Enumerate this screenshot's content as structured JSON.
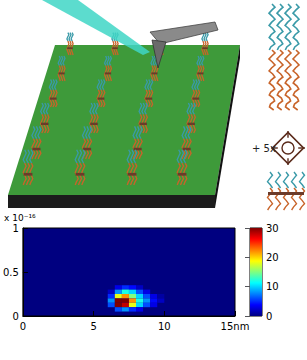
{
  "chart_data": {
    "type": "heatmap",
    "xlim": [
      0,
      15
    ],
    "xticks": [
      0,
      5,
      10,
      {
        "value": 15,
        "label": "15nm"
      }
    ],
    "ylim": [
      0,
      1
    ],
    "yticks": [
      0,
      0.5,
      1
    ],
    "annotations": [
      "x 10⁻¹⁶"
    ],
    "cell_size": [
      0.5,
      0.05
    ],
    "cells": [
      [
        6.5,
        0.3,
        3
      ],
      [
        7,
        0.3,
        5
      ],
      [
        7.5,
        0.3,
        4
      ],
      [
        8,
        0.3,
        2
      ],
      [
        6,
        0.25,
        2
      ],
      [
        6.5,
        0.25,
        8
      ],
      [
        7,
        0.25,
        12
      ],
      [
        7.5,
        0.25,
        10
      ],
      [
        8,
        0.25,
        6
      ],
      [
        8.5,
        0.25,
        3
      ],
      [
        6,
        0.2,
        5
      ],
      [
        6.5,
        0.2,
        18
      ],
      [
        7,
        0.2,
        22
      ],
      [
        7.5,
        0.2,
        15
      ],
      [
        8,
        0.2,
        10
      ],
      [
        8.5,
        0.2,
        6
      ],
      [
        9,
        0.2,
        3
      ],
      [
        9.5,
        0.2,
        1
      ],
      [
        6,
        0.15,
        8
      ],
      [
        6.5,
        0.15,
        30
      ],
      [
        7,
        0.15,
        30
      ],
      [
        7.5,
        0.15,
        22
      ],
      [
        8,
        0.15,
        12
      ],
      [
        8.5,
        0.15,
        8
      ],
      [
        9,
        0.15,
        4
      ],
      [
        9.5,
        0.15,
        2
      ],
      [
        6,
        0.1,
        6
      ],
      [
        6.5,
        0.1,
        30
      ],
      [
        7,
        0.1,
        28
      ],
      [
        7.5,
        0.1,
        18
      ],
      [
        8,
        0.1,
        10
      ],
      [
        8.5,
        0.1,
        6
      ],
      [
        9,
        0.1,
        3
      ],
      [
        6.5,
        0.05,
        6
      ],
      [
        7,
        0.05,
        8
      ],
      [
        7.5,
        0.05,
        5
      ],
      [
        8,
        0.05,
        3
      ]
    ],
    "colorbar_lim": [
      0,
      30
    ],
    "colorbar_ticks": [
      0,
      10,
      20,
      30
    ]
  },
  "illustration": {
    "labels": [
      "+ 5x"
    ]
  }
}
